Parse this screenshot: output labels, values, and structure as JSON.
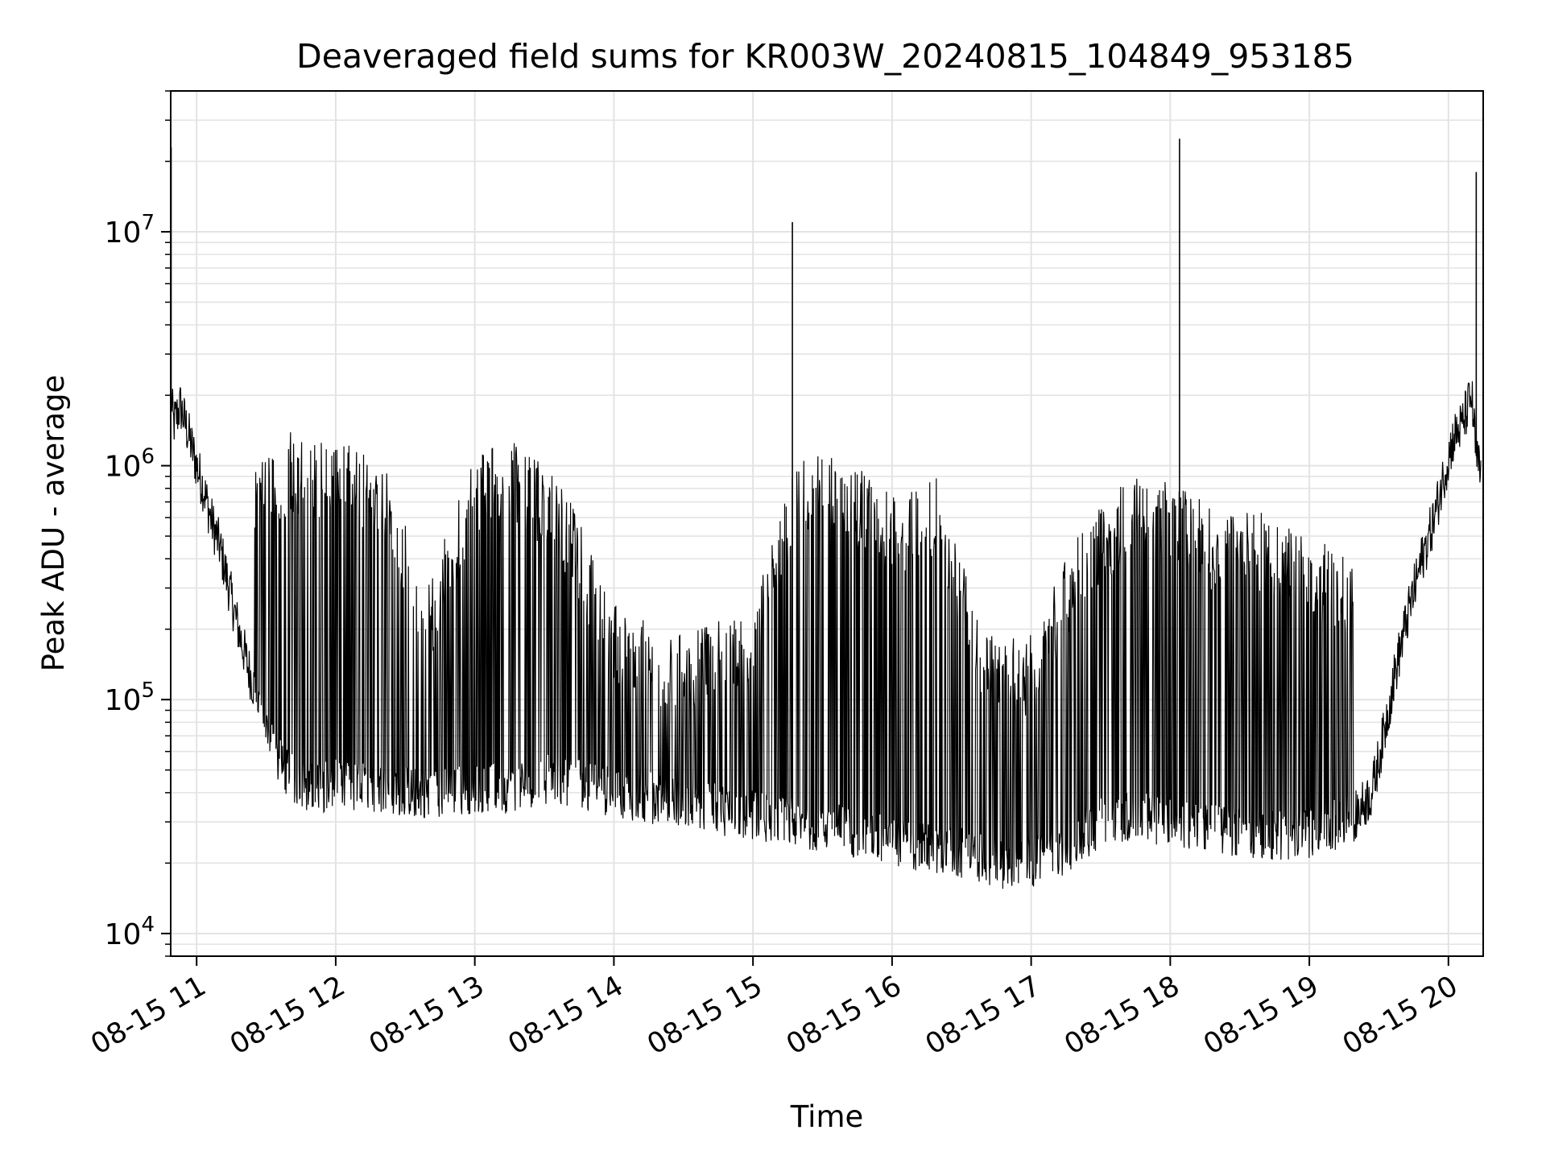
{
  "chart_data": {
    "type": "line",
    "title": "Deaveraged field sums for KR003W_20240815_104849_953185",
    "xlabel": "Time",
    "ylabel": "Peak ADU - average",
    "yscale": "log",
    "ylim": [
      8000,
      40000000
    ],
    "xlim": [
      "2024-08-15T10:48:49",
      "2024-08-15T20:15:00"
    ],
    "grid": true,
    "line_color": "#000000",
    "x_ticks": [
      {
        "t": "2024-08-15T11:00",
        "label": "08-15 11"
      },
      {
        "t": "2024-08-15T12:00",
        "label": "08-15 12"
      },
      {
        "t": "2024-08-15T13:00",
        "label": "08-15 13"
      },
      {
        "t": "2024-08-15T14:00",
        "label": "08-15 14"
      },
      {
        "t": "2024-08-15T15:00",
        "label": "08-15 15"
      },
      {
        "t": "2024-08-15T16:00",
        "label": "08-15 16"
      },
      {
        "t": "2024-08-15T17:00",
        "label": "08-15 17"
      },
      {
        "t": "2024-08-15T18:00",
        "label": "08-15 18"
      },
      {
        "t": "2024-08-15T19:00",
        "label": "08-15 19"
      },
      {
        "t": "2024-08-15T20:00",
        "label": "08-15 20"
      }
    ],
    "y_ticks": [
      {
        "value": 10000,
        "base": "10",
        "exp": "4"
      },
      {
        "value": 100000,
        "base": "10",
        "exp": "5"
      },
      {
        "value": 1000000,
        "base": "10",
        "exp": "6"
      },
      {
        "value": 10000000,
        "base": "10",
        "exp": "7"
      }
    ],
    "series": [
      {
        "points": [
          [
            "2024-08-15T10:49",
            2000000
          ],
          [
            "2024-08-15T10:50",
            1500000
          ],
          [
            "2024-08-15T10:53",
            1800000
          ],
          [
            "2024-08-15T10:57",
            1300000
          ],
          [
            "2024-08-15T11:00",
            1000000
          ],
          [
            "2024-08-15T11:03",
            800000
          ],
          [
            "2024-08-15T11:06",
            600000
          ],
          [
            "2024-08-15T11:10",
            450000
          ],
          [
            "2024-08-15T11:14",
            300000
          ],
          [
            "2024-08-15T11:18",
            200000
          ],
          [
            "2024-08-15T11:22",
            140000
          ],
          [
            "2024-08-15T11:27",
            95000
          ],
          [
            "2024-08-15T11:32",
            65000
          ],
          [
            "2024-08-15T11:37",
            50000
          ],
          [
            "2024-08-15T11:43",
            44000
          ],
          [
            "2024-08-15T11:50",
            42000
          ],
          [
            "2024-08-15T12:00",
            43000
          ],
          [
            "2024-08-15T12:10",
            42000
          ],
          [
            "2024-08-15T12:20",
            42000
          ],
          [
            "2024-08-15T12:30",
            40000
          ],
          [
            "2024-08-15T12:45",
            40000
          ],
          [
            "2024-08-15T13:00",
            42000
          ],
          [
            "2024-08-15T13:15",
            42000
          ],
          [
            "2024-08-15T13:30",
            46000
          ],
          [
            "2024-08-15T13:45",
            44000
          ],
          [
            "2024-08-15T14:00",
            40000
          ],
          [
            "2024-08-15T14:15",
            38000
          ],
          [
            "2024-08-15T14:30",
            37000
          ],
          [
            "2024-08-15T14:45",
            34000
          ],
          [
            "2024-08-15T15:00",
            32000
          ],
          [
            "2024-08-15T15:15",
            30000
          ],
          [
            "2024-08-15T15:30",
            29000
          ],
          [
            "2024-08-15T15:45",
            27000
          ],
          [
            "2024-08-15T16:00",
            25000
          ],
          [
            "2024-08-15T16:15",
            23000
          ],
          [
            "2024-08-15T16:30",
            22000
          ],
          [
            "2024-08-15T16:45",
            20000
          ],
          [
            "2024-08-15T17:00",
            20000
          ],
          [
            "2024-08-15T17:15",
            23000
          ],
          [
            "2024-08-15T17:30",
            30000
          ],
          [
            "2024-08-15T17:45",
            32000
          ],
          [
            "2024-08-15T18:00",
            30000
          ],
          [
            "2024-08-15T18:15",
            28000
          ],
          [
            "2024-08-15T18:30",
            27000
          ],
          [
            "2024-08-15T18:45",
            26000
          ],
          [
            "2024-08-15T19:00",
            27000
          ],
          [
            "2024-08-15T19:10",
            29000
          ],
          [
            "2024-08-15T19:20",
            32000
          ],
          [
            "2024-08-15T19:27",
            40000
          ],
          [
            "2024-08-15T19:32",
            70000
          ],
          [
            "2024-08-15T19:37",
            130000
          ],
          [
            "2024-08-15T19:42",
            220000
          ],
          [
            "2024-08-15T19:48",
            380000
          ],
          [
            "2024-08-15T19:54",
            600000
          ],
          [
            "2024-08-15T19:58",
            900000
          ],
          [
            "2024-08-15T20:02",
            1300000
          ],
          [
            "2024-08-15T20:06",
            1500000
          ],
          [
            "2024-08-15T20:10",
            2000000
          ],
          [
            "2024-08-15T20:12",
            1100000
          ],
          [
            "2024-08-15T20:14",
            900000
          ]
        ],
        "high_envelope": [
          [
            "2024-08-15T11:25",
            800000
          ],
          [
            "2024-08-15T11:40",
            1100000
          ],
          [
            "2024-08-15T12:00",
            1000000
          ],
          [
            "2024-08-15T12:20",
            900000
          ],
          [
            "2024-08-15T12:40",
            250000
          ],
          [
            "2024-08-15T13:00",
            900000
          ],
          [
            "2024-08-15T13:20",
            1000000
          ],
          [
            "2024-08-15T13:40",
            600000
          ],
          [
            "2024-08-15T14:00",
            200000
          ],
          [
            "2024-08-15T14:30",
            150000
          ],
          [
            "2024-08-15T15:00",
            200000
          ],
          [
            "2024-08-15T15:20",
            900000
          ],
          [
            "2024-08-15T15:40",
            850000
          ],
          [
            "2024-08-15T16:00",
            600000
          ],
          [
            "2024-08-15T16:20",
            700000
          ],
          [
            "2024-08-15T16:40",
            150000
          ],
          [
            "2024-08-15T17:00",
            150000
          ],
          [
            "2024-08-15T17:20",
            400000
          ],
          [
            "2024-08-15T17:40",
            700000
          ],
          [
            "2024-08-15T18:00",
            700000
          ],
          [
            "2024-08-15T18:20",
            500000
          ],
          [
            "2024-08-15T18:40",
            500000
          ],
          [
            "2024-08-15T19:00",
            400000
          ],
          [
            "2024-08-15T19:20",
            300000
          ]
        ],
        "spikes": [
          [
            "2024-08-15T10:49",
            23000000
          ],
          [
            "2024-08-15T15:17",
            11000000
          ],
          [
            "2024-08-15T18:04",
            25000000
          ],
          [
            "2024-08-15T20:12",
            18000000
          ]
        ]
      }
    ]
  }
}
